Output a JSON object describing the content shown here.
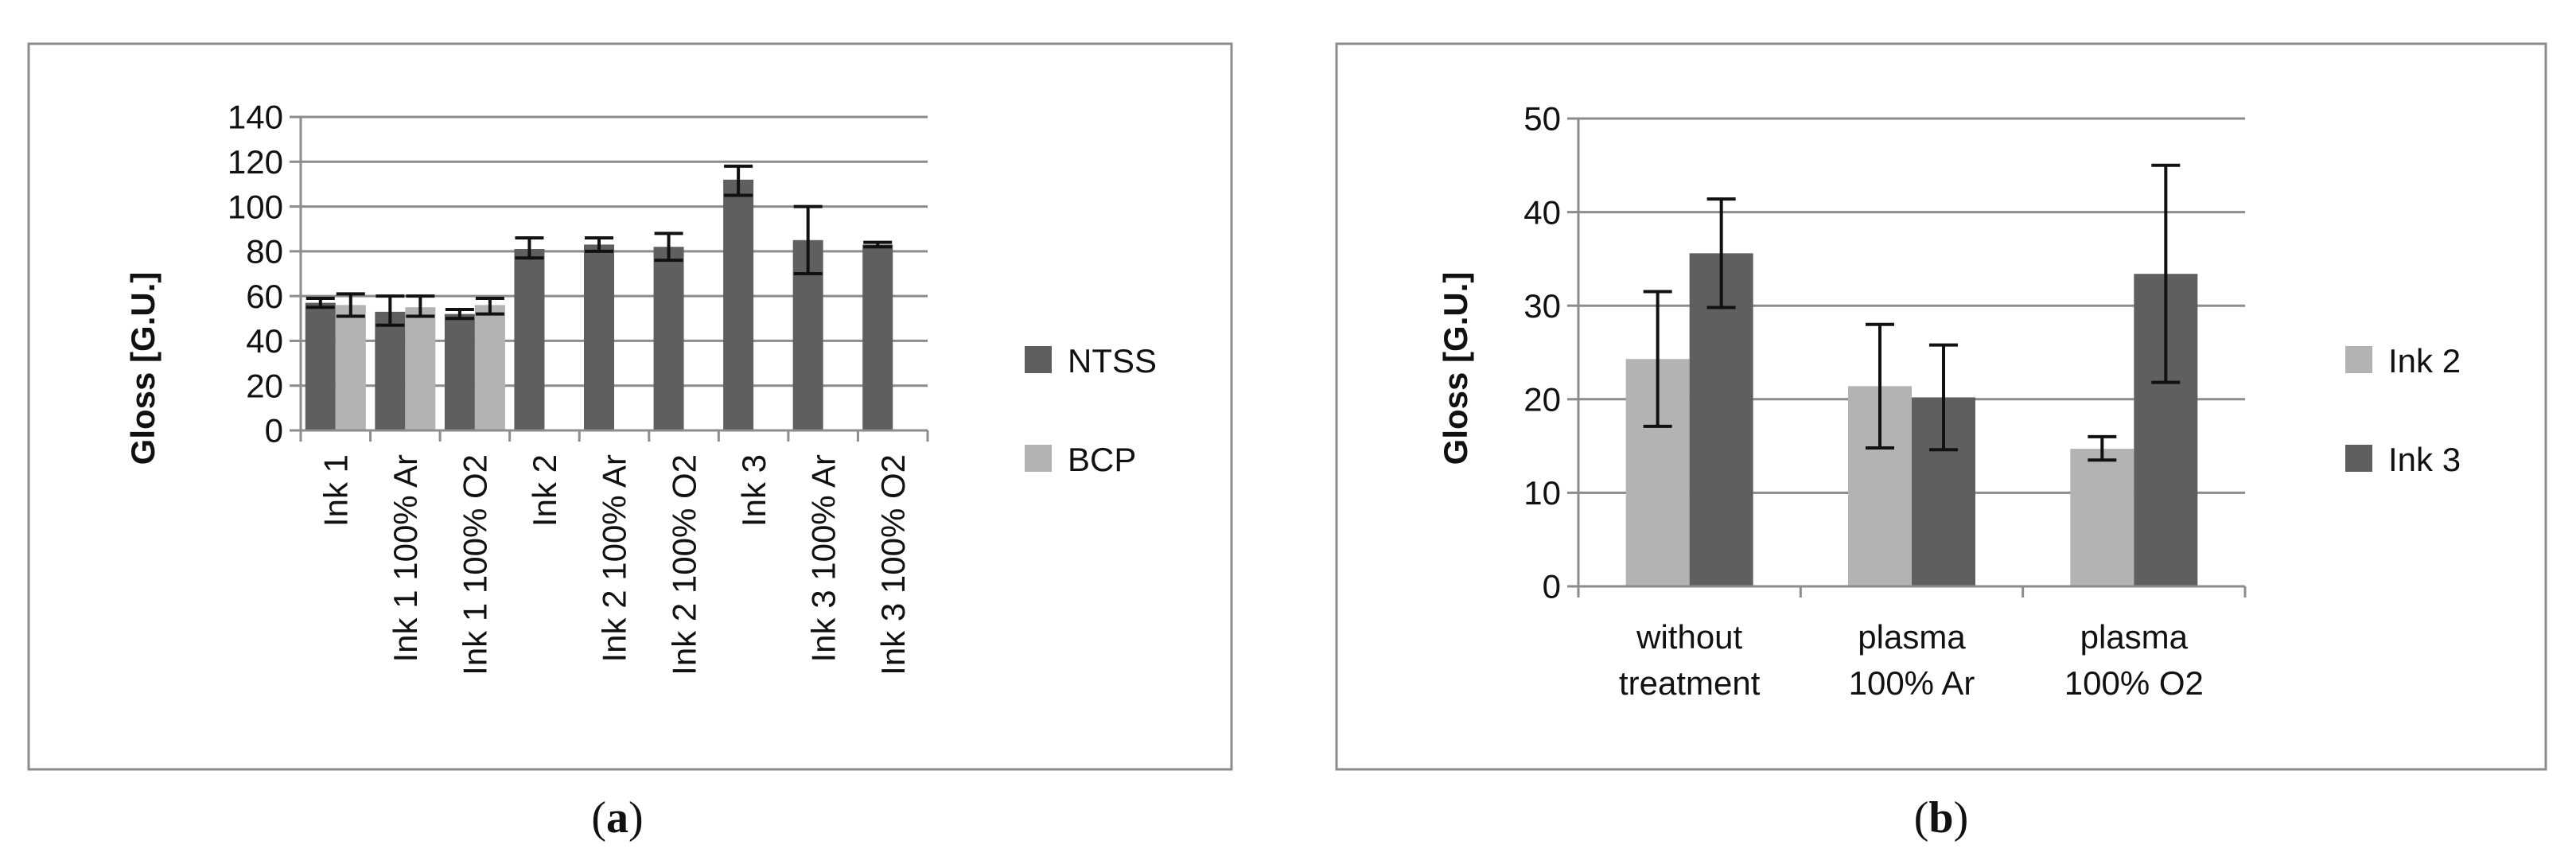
{
  "chart_data": [
    {
      "type": "bar",
      "panel_label": "(a)",
      "panel_letter": "a",
      "title": "",
      "ylabel": "Gloss [G.U.]",
      "xlabel": "",
      "ylim": [
        0,
        140
      ],
      "yticks": [
        0,
        20,
        40,
        60,
        80,
        100,
        120,
        140
      ],
      "grid": true,
      "legend_position": "right",
      "categories": [
        "Ink 1",
        "Ink 1 100% Ar",
        "Ink 1 100% O2",
        "Ink 2",
        "Ink 2 100% Ar",
        "Ink 2 100% O2",
        "Ink 3",
        "Ink 3 100% Ar",
        "Ink 3 100% O2"
      ],
      "series": [
        {
          "name": "NTSS",
          "color": "#5f5f5f",
          "values": [
            57,
            53,
            52,
            81,
            83,
            82,
            112,
            85,
            83
          ],
          "error_low": [
            55,
            47,
            50,
            77,
            80,
            76,
            105,
            70,
            82
          ],
          "error_high": [
            59,
            60,
            54,
            86,
            86,
            88,
            118,
            100,
            84
          ]
        },
        {
          "name": "BCP",
          "color": "#b3b3b3",
          "values": [
            56,
            55,
            56,
            null,
            null,
            null,
            null,
            null,
            null
          ],
          "error_low": [
            51,
            51,
            52,
            null,
            null,
            null,
            null,
            null,
            null
          ],
          "error_high": [
            61,
            60,
            59,
            null,
            null,
            null,
            null,
            null,
            null
          ]
        }
      ]
    },
    {
      "type": "bar",
      "panel_label": "(b)",
      "panel_letter": "b",
      "title": "",
      "ylabel": "Gloss [G.U.]",
      "xlabel": "",
      "ylim": [
        0,
        50
      ],
      "yticks": [
        0,
        10,
        20,
        30,
        40,
        50
      ],
      "grid": true,
      "legend_position": "right",
      "categories": [
        [
          "without",
          "treatment"
        ],
        [
          "plasma",
          "100% Ar"
        ],
        [
          "plasma",
          "100% O2"
        ]
      ],
      "series": [
        {
          "name": "Ink 2",
          "color": "#b3b3b3",
          "values": [
            24.3,
            21.4,
            14.7
          ],
          "error_low": [
            17.1,
            14.8,
            13.5
          ],
          "error_high": [
            31.5,
            28.0,
            16.0
          ]
        },
        {
          "name": "Ink 3",
          "color": "#5f5f5f",
          "values": [
            35.6,
            20.2,
            33.4
          ],
          "error_low": [
            29.8,
            14.6,
            21.8
          ],
          "error_high": [
            41.4,
            25.8,
            45.0
          ]
        }
      ]
    }
  ]
}
